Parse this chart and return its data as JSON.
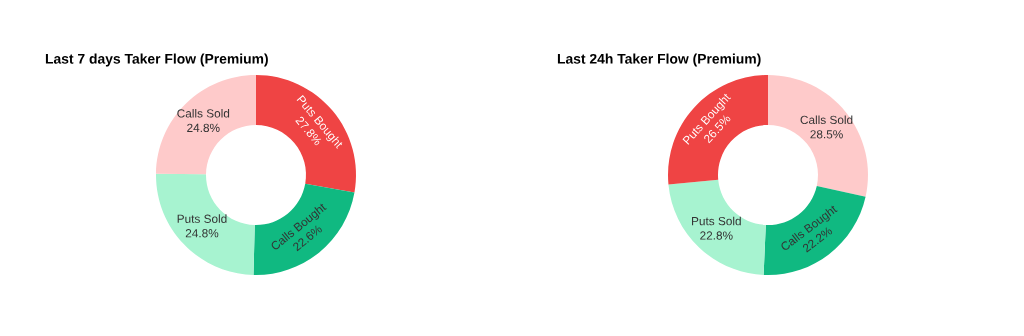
{
  "chart_data": [
    {
      "type": "donut",
      "title": "Last 7 days Taker Flow (Premium)",
      "categories": [
        "Puts Bought",
        "Calls Bought",
        "Puts Sold",
        "Calls Sold"
      ],
      "values": [
        27.8,
        22.6,
        24.8,
        24.8
      ],
      "colors": [
        "#ef4444",
        "#10b981",
        "#a7f3d0",
        "#fecaca"
      ],
      "value_labels": [
        "27.8%",
        "22.6%",
        "24.8%",
        "24.8%"
      ]
    },
    {
      "type": "donut",
      "title": "Last 24h Taker Flow (Premium)",
      "categories": [
        "Calls Sold",
        "Calls Bought",
        "Puts Sold",
        "Puts Bought"
      ],
      "values": [
        28.5,
        22.2,
        22.8,
        26.5
      ],
      "colors": [
        "#fecaca",
        "#10b981",
        "#a7f3d0",
        "#ef4444"
      ],
      "value_labels": [
        "28.5%",
        "22.2%",
        "22.8%",
        "26.5%"
      ]
    }
  ]
}
